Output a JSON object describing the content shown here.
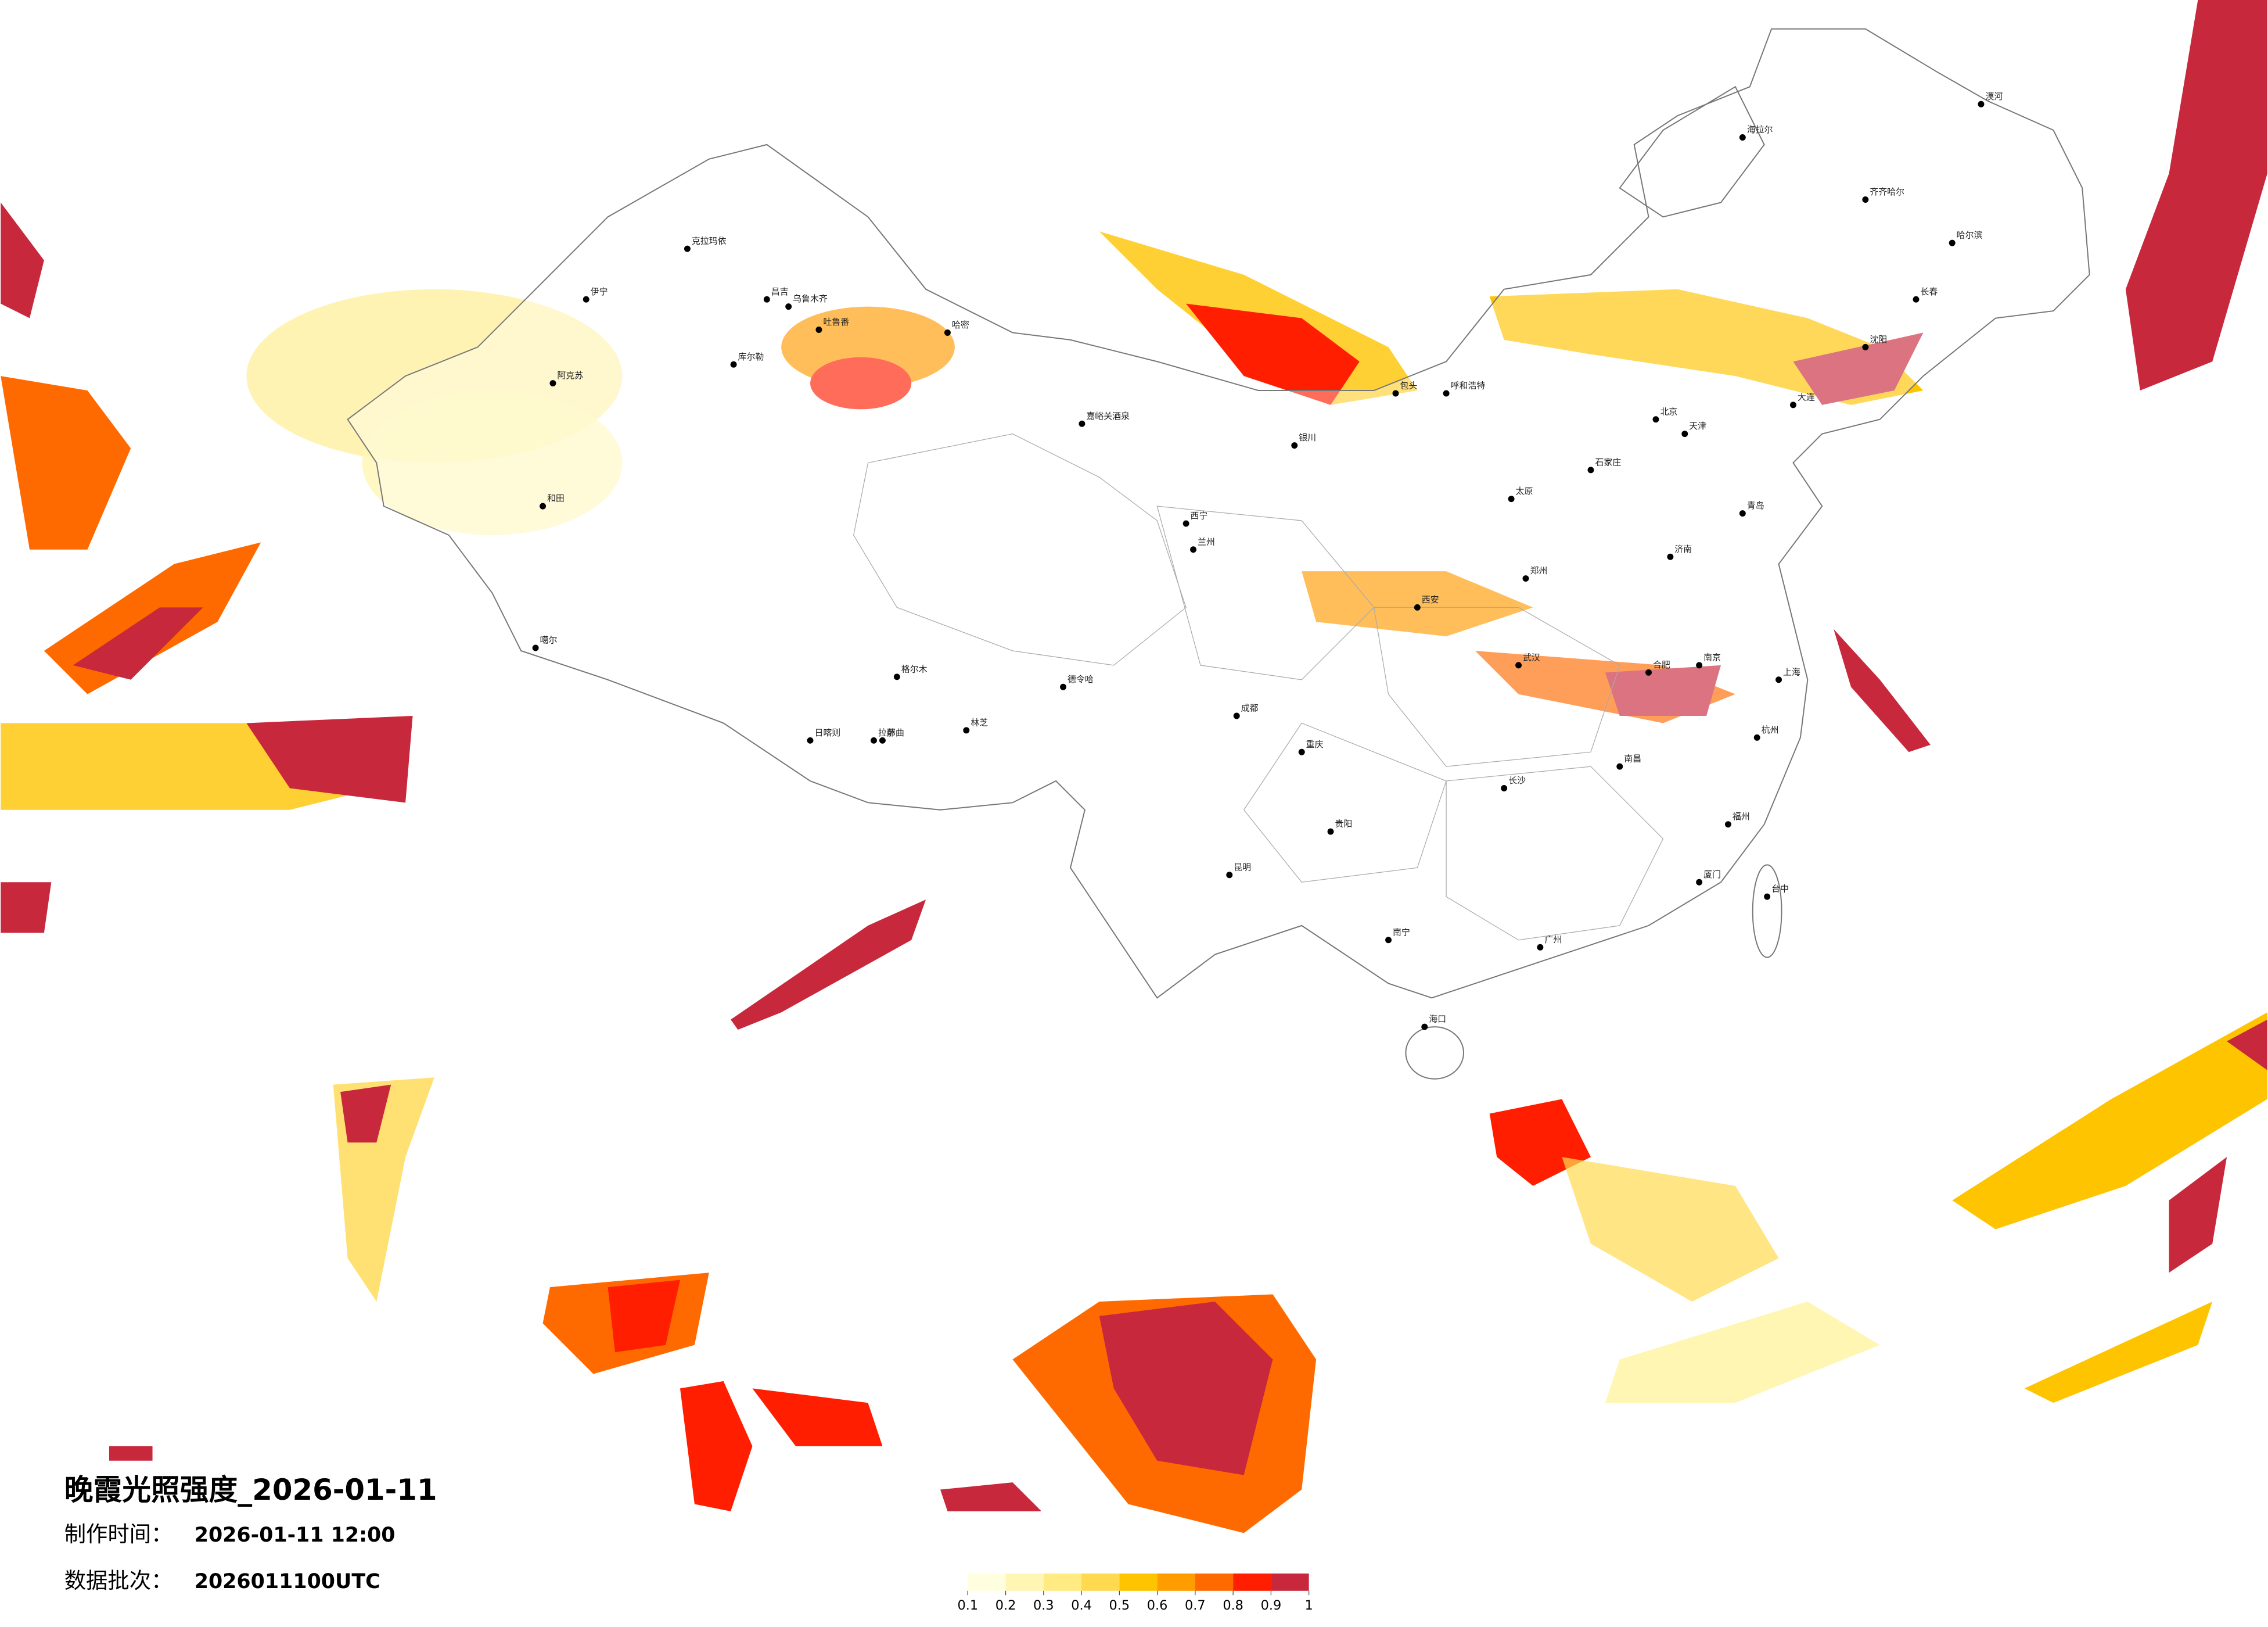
{
  "title": "晚霞光照强度_2026-01-11",
  "info": [
    {
      "label": "制作时间：",
      "value": "2026-01-11 12:00"
    },
    {
      "label": "数据批次：",
      "value": "2026011100UTC"
    }
  ],
  "colorbar": {
    "ticks": [
      0.1,
      0.2,
      0.3,
      0.4,
      0.5,
      0.6,
      0.7,
      0.8,
      0.9,
      1
    ],
    "colors": [
      "#ffffe0",
      "#fff6b4",
      "#ffeb82",
      "#ffda50",
      "#ffc400",
      "#ff9c00",
      "#ff6a00",
      "#ff1e00",
      "#c8283c"
    ]
  },
  "cities": [
    "克拉玛依",
    "伊宁",
    "昌吉",
    "乌鲁木齐",
    "吐鲁番",
    "哈密",
    "库尔勒",
    "阿克苏",
    "和田",
    "噶尔",
    "嘉峪关酒泉",
    "德令哈",
    "格尔木",
    "那曲",
    "拉萨",
    "日喀则",
    "林芝",
    "西宁",
    "兰州",
    "银川",
    "呼和浩特",
    "包头",
    "太原",
    "石家庄",
    "北京",
    "天津",
    "济南",
    "郑州",
    "西安",
    "成都",
    "重庆",
    "武汉",
    "合肥",
    "南京",
    "上海",
    "杭州",
    "长沙",
    "南昌",
    "福州",
    "贵阳",
    "昆明",
    "南宁",
    "广州",
    "海口",
    "台中",
    "沈阳",
    "长春",
    "哈尔滨",
    "齐齐哈尔",
    "海拉尔",
    "漠河",
    "大连",
    "青岛",
    "厦门"
  ]
}
